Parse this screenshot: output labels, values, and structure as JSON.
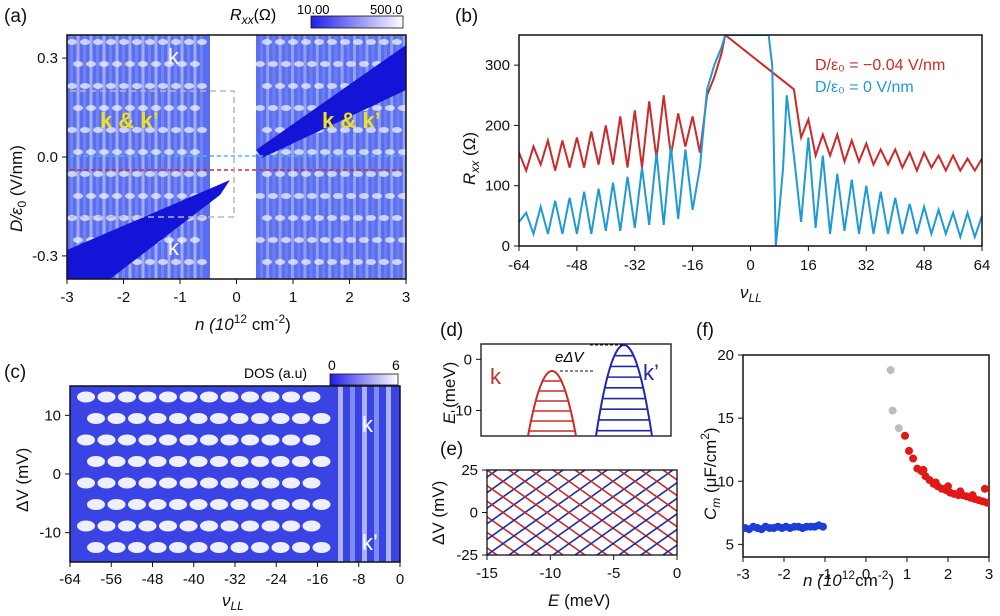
{
  "panels": {
    "a": {
      "label": "(a)",
      "colorbar_label": "R",
      "colorbar_sub": "xx",
      "colorbar_unit": "(Ω)",
      "colorbar_min": "10.00",
      "colorbar_max": "500.0",
      "region_labels": {
        "k_top": "k",
        "kk_left": "k & k’",
        "kk_right": "k & k’",
        "kprime": "k’"
      },
      "xlabel": "n (10",
      "xlabel_sup": "12",
      "xlabel_tail": " cm",
      "xlabel_sup2": "-2",
      "xlabel_end": ")",
      "ylabel": "D/ε",
      "ylabel_sub": "0",
      "ylabel_tail": " (V/nm)",
      "xticks": [
        "-3",
        "-2",
        "-1",
        "0",
        "1",
        "2",
        "3"
      ],
      "yticks": [
        "0.3",
        "0.0",
        "-0.3"
      ]
    },
    "b": {
      "label": "(b)",
      "xlabel": "ν",
      "xlabel_sub": "LL",
      "ylabel": "R",
      "ylabel_sub": "xx",
      "ylabel_unit": " (Ω)",
      "xticks": [
        "-64",
        "-48",
        "-32",
        "-16",
        "0",
        "16",
        "32",
        "48",
        "64"
      ],
      "yticks": [
        "0",
        "100",
        "200",
        "300"
      ],
      "legend": [
        {
          "text": "D/ε₀ = −0.04 V/nm",
          "color": "#cc2a2a"
        },
        {
          "text": "D/ε₀ = 0 V/nm",
          "color": "#1e9ad6"
        }
      ]
    },
    "c": {
      "label": "(c)",
      "colorbar_label": "DOS (a.u)",
      "colorbar_min": "0",
      "colorbar_max": "6",
      "region_labels": {
        "k": "k",
        "kprime": "k’"
      },
      "xlabel": "ν",
      "xlabel_sub": "LL",
      "ylabel": "ΔV (mV)",
      "xticks": [
        "-64",
        "-56",
        "-48",
        "-40",
        "-32",
        "-24",
        "-16",
        "-8",
        "0"
      ],
      "yticks": [
        "10",
        "0",
        "-10"
      ]
    },
    "d": {
      "label": "(d)",
      "ylabel": "E (meV)",
      "yticks": [
        "0",
        "-10"
      ],
      "annotation": "eΔV",
      "valley_labels": {
        "k": "k",
        "kprime": "k’"
      }
    },
    "e": {
      "label": "(e)",
      "ylabel": "ΔV (mV)",
      "xlabel": "E (meV)",
      "xticks": [
        "-15",
        "-10",
        "-5",
        "0"
      ],
      "yticks": [
        "25",
        "0",
        "-25"
      ]
    },
    "f": {
      "label": "(f)",
      "ylabel": "C",
      "ylabel_sub": "m",
      "ylabel_tail": " (μF/cm",
      "ylabel_sup": "2",
      "ylabel_end": ")",
      "xlabel": "n (10",
      "xlabel_sup": "12",
      "xlabel_tail": "cm",
      "xlabel_sup2": "-2",
      "xlabel_end": ")",
      "xticks": [
        "-3",
        "-2",
        "-1",
        "0",
        "1",
        "2",
        "3"
      ],
      "yticks": [
        "5",
        "10",
        "15",
        "20"
      ]
    }
  },
  "chart_data": [
    {
      "panel": "a",
      "type": "heatmap",
      "xlim": [
        -3,
        3
      ],
      "ylim": [
        -0.37,
        0.37
      ],
      "colorbar": {
        "min": 10.0,
        "max": 500.0,
        "colors": [
          "#2020e8",
          "#ffffff"
        ]
      },
      "guide_lines": [
        {
          "y": 0.0,
          "color": "#40c0e0",
          "style": "dashed"
        },
        {
          "y": -0.04,
          "color": "#c03030",
          "style": "dashed"
        }
      ]
    },
    {
      "panel": "b",
      "type": "line",
      "xlim": [
        -64,
        64
      ],
      "ylim": [
        0,
        350
      ],
      "series": [
        {
          "name": "D/ε₀ = −0.04 V/nm",
          "color": "#cc2a2a",
          "x": [
            -64,
            -62,
            -60,
            -58,
            -56,
            -54,
            -52,
            -50,
            -48,
            -46,
            -44,
            -42,
            -40,
            -38,
            -36,
            -34,
            -32,
            -30,
            -28,
            -26,
            -24,
            -22,
            -20,
            -18,
            -16,
            -14,
            -12,
            -10,
            -8,
            -7,
            12,
            14,
            16,
            18,
            20,
            22,
            24,
            26,
            28,
            30,
            32,
            34,
            36,
            38,
            40,
            42,
            44,
            46,
            48,
            50,
            52,
            54,
            56,
            58,
            60,
            62,
            64
          ],
          "y": [
            155,
            125,
            165,
            135,
            175,
            125,
            175,
            130,
            180,
            130,
            190,
            135,
            200,
            135,
            215,
            130,
            225,
            130,
            240,
            145,
            250,
            150,
            220,
            165,
            215,
            155,
            250,
            280,
            320,
            350,
            260,
            180,
            210,
            150,
            185,
            150,
            185,
            140,
            175,
            140,
            170,
            135,
            160,
            135,
            160,
            130,
            155,
            125,
            155,
            130,
            150,
            125,
            150,
            125,
            145,
            125,
            145
          ]
        },
        {
          "name": "D/ε₀ = 0 V/nm",
          "color": "#1e9ad6",
          "x": [
            -64,
            -62,
            -60,
            -58,
            -56,
            -54,
            -52,
            -50,
            -48,
            -46,
            -44,
            -42,
            -40,
            -38,
            -36,
            -34,
            -32,
            -30,
            -28,
            -26,
            -24,
            -22,
            -20,
            -18,
            -16,
            -14,
            -12,
            -10,
            -8,
            -7,
            5,
            6,
            7,
            8,
            9,
            10,
            12,
            14,
            16,
            18,
            20,
            22,
            24,
            26,
            28,
            30,
            32,
            34,
            36,
            38,
            40,
            42,
            44,
            46,
            48,
            50,
            52,
            54,
            56,
            58,
            60,
            62,
            64
          ],
          "y": [
            40,
            55,
            20,
            65,
            20,
            75,
            20,
            80,
            20,
            90,
            20,
            95,
            25,
            105,
            25,
            115,
            30,
            130,
            35,
            155,
            35,
            165,
            45,
            160,
            60,
            130,
            260,
            300,
            330,
            350,
            350,
            300,
            0,
            60,
            130,
            250,
            150,
            40,
            180,
            30,
            150,
            20,
            120,
            25,
            110,
            20,
            100,
            20,
            90,
            20,
            80,
            20,
            70,
            20,
            65,
            20,
            60,
            20,
            55,
            15,
            55,
            15,
            50
          ]
        }
      ]
    },
    {
      "panel": "c",
      "type": "heatmap",
      "xlim": [
        -64,
        0
      ],
      "ylim": [
        -15,
        15
      ],
      "colorbar": {
        "min": 0,
        "max": 6,
        "colors": [
          "#2020e8",
          "#ffffff"
        ]
      }
    },
    {
      "panel": "d",
      "type": "line",
      "ylim": [
        -15,
        3
      ],
      "series": [
        {
          "color": "#cc2a2a",
          "values": [
            -3,
            -15
          ]
        },
        {
          "color": "#1e2aa8",
          "values": [
            3,
            -15
          ]
        }
      ]
    },
    {
      "panel": "e",
      "type": "line",
      "xlim": [
        -15,
        0
      ],
      "ylim": [
        -25,
        25
      ],
      "series": [
        {
          "color": "#cc2a2a"
        },
        {
          "color": "#1e2aa8"
        }
      ]
    },
    {
      "panel": "f",
      "type": "scatter",
      "xlim": [
        -3,
        3
      ],
      "ylim": [
        4,
        20
      ],
      "series": [
        {
          "color": "#1e3cd8",
          "x": [
            -2.95,
            -2.85,
            -2.75,
            -2.65,
            -2.55,
            -2.45,
            -2.35,
            -2.25,
            -2.15,
            -2.05,
            -1.95,
            -1.85,
            -1.75,
            -1.65,
            -1.55,
            -1.45,
            -1.35,
            -1.25,
            -1.15,
            -1.05
          ],
          "y": [
            6.3,
            6.2,
            6.4,
            6.3,
            6.2,
            6.4,
            6.3,
            6.3,
            6.4,
            6.3,
            6.4,
            6.3,
            6.4,
            6.4,
            6.3,
            6.4,
            6.4,
            6.4,
            6.5,
            6.4
          ]
        },
        {
          "color": "#bdbdbd",
          "x": [
            0.6,
            0.65,
            0.8
          ],
          "y": [
            18.8,
            15.6,
            14.2
          ]
        },
        {
          "color": "#e01818",
          "x": [
            0.95,
            1.05,
            1.15,
            1.25,
            1.35,
            1.45,
            1.55,
            1.65,
            1.75,
            1.85,
            1.95,
            2.05,
            2.15,
            2.25,
            2.35,
            2.45,
            2.55,
            2.65,
            2.75,
            2.85,
            2.95,
            1.4,
            1.7,
            2.0,
            2.3,
            2.6,
            2.9
          ],
          "y": [
            13.6,
            12.4,
            11.8,
            11.0,
            10.8,
            10.4,
            10.1,
            9.8,
            9.6,
            9.4,
            9.3,
            9.1,
            9.0,
            8.9,
            8.9,
            8.8,
            8.7,
            8.6,
            8.5,
            8.4,
            8.3,
            10.9,
            9.9,
            9.6,
            9.2,
            8.9,
            9.4
          ]
        }
      ]
    }
  ]
}
